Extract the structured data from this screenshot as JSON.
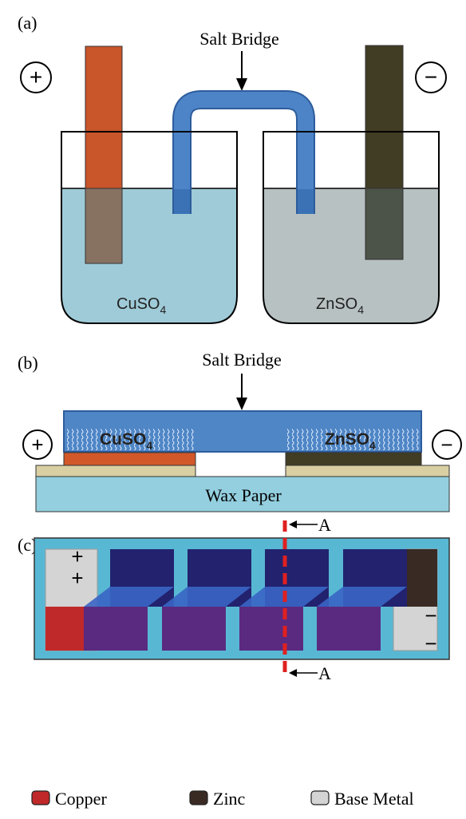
{
  "panels": {
    "a": {
      "label": "(a)",
      "bridge_label": "Salt Bridge",
      "positive": "+",
      "negative": "−",
      "left_solution": {
        "formula": "CuSO",
        "subscript": "4"
      },
      "right_solution": {
        "formula": "ZnSO",
        "subscript": "4"
      }
    },
    "b": {
      "label": "(b)",
      "bridge_label": "Salt Bridge",
      "positive": "+",
      "negative": "−",
      "left_solution": {
        "formula": "CuSO",
        "subscript": "4"
      },
      "right_solution": {
        "formula": "ZnSO",
        "subscript": "4"
      },
      "substrate": "Wax Paper"
    },
    "c": {
      "label": "(c)",
      "section_top": "A",
      "section_bottom": "A",
      "plus": [
        "+",
        "+"
      ],
      "minus": [
        "−",
        "−"
      ]
    }
  },
  "legend": [
    {
      "name": "Copper",
      "color": "#c0292a"
    },
    {
      "name": "Zinc",
      "color": "#3a2a24"
    },
    {
      "name": "Base Metal",
      "color": "#d4d4d4"
    }
  ]
}
